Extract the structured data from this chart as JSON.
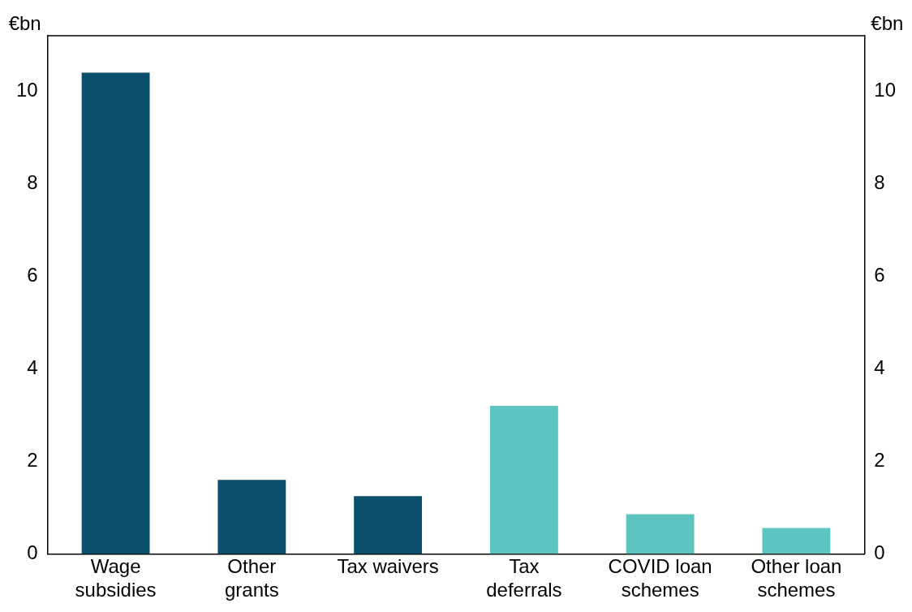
{
  "chart_data": {
    "type": "bar",
    "ylabel": "€bn",
    "y2label": "€bn",
    "categories": [
      "Wage\nsubsidies",
      "Other\ngrants",
      "Tax waivers",
      "Tax\ndeferrals",
      "COVID loan\nschemes",
      "Other loan\nschemes"
    ],
    "values": [
      10.4,
      1.6,
      1.25,
      3.2,
      0.86,
      0.56
    ],
    "colors": [
      "#0b4f6c",
      "#0b4f6c",
      "#0b4f6c",
      "#5ec4c0",
      "#5ec4c0",
      "#5ec4c0"
    ],
    "ylim": [
      0,
      11.2
    ],
    "yticks": [
      0,
      2,
      4,
      6,
      8,
      10
    ],
    "y2lim": [
      0,
      11.2
    ],
    "y2ticks": [
      0,
      2,
      4,
      6,
      8,
      10
    ],
    "grid": false,
    "legend": false
  }
}
